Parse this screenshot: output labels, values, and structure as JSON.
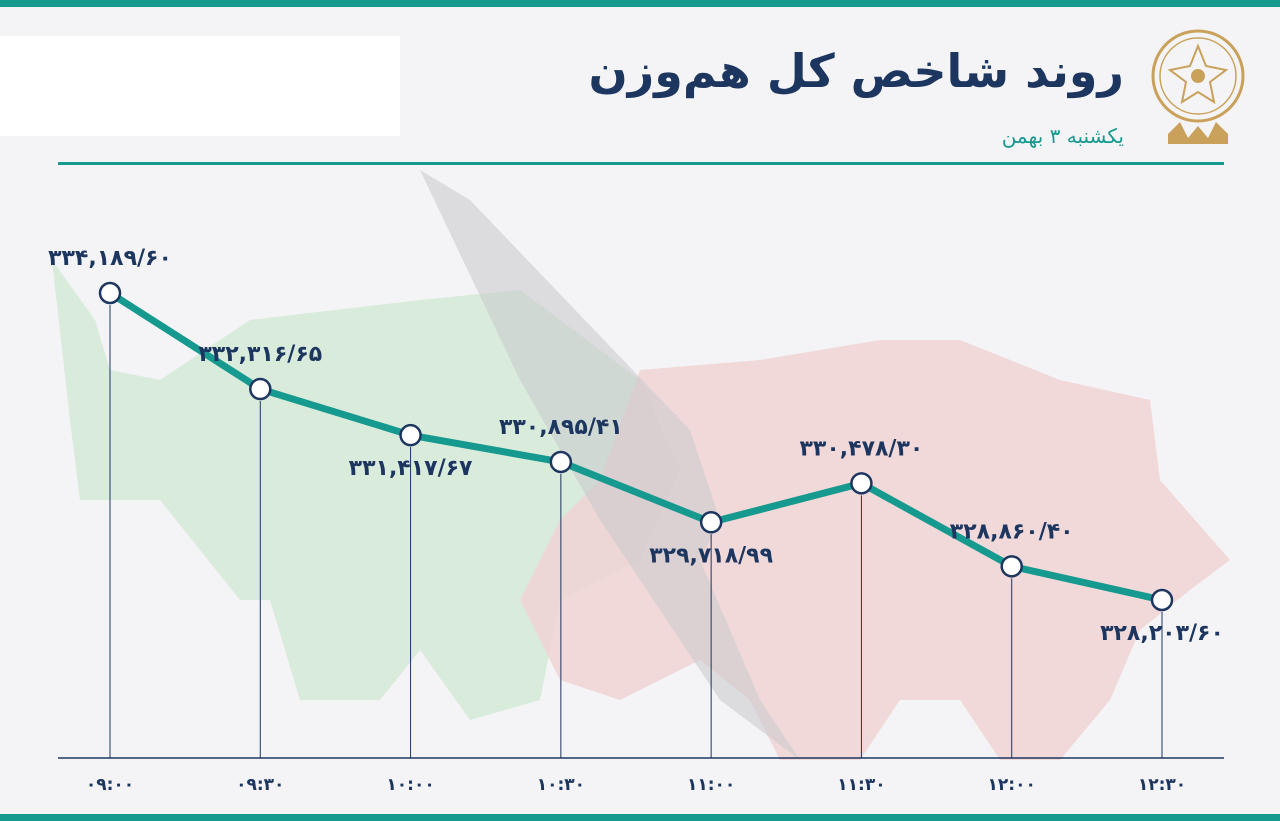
{
  "header": {
    "title": "روند شاخص کل هم‌وزن",
    "subtitle": "یکشنبه ۳ بهمن"
  },
  "colors": {
    "accent": "#16998f",
    "navy": "#1d3660",
    "bull": "#d3e9d6",
    "bear": "#f0d3d3"
  },
  "icons": [
    "exchange-logo-icon",
    "bull-silhouette-icon",
    "bear-silhouette-icon"
  ],
  "chart_data": {
    "type": "line",
    "title": "روند شاخص کل هم‌وزن",
    "xlabel": "",
    "ylabel": "",
    "categories": [
      "۰۹:۰۰",
      "۰۹:۳۰",
      "۱۰:۰۰",
      "۱۰:۳۰",
      "۱۱:۰۰",
      "۱۱:۳۰",
      "۱۲:۰۰",
      "۱۲:۳۰"
    ],
    "values": [
      334189.6,
      332316.65,
      331417.67,
      330895.41,
      329718.99,
      330478.3,
      328860.4,
      328203.6
    ],
    "value_labels": [
      "۳۳۴,۱۸۹/۶۰",
      "۳۳۲,۳۱۶/۶۵",
      "۳۳۱,۴۱۷/۶۷",
      "۳۳۰,۸۹۵/۴۱",
      "۳۲۹,۷۱۸/۹۹",
      "۳۳۰,۴۷۸/۳۰",
      "۳۲۸,۸۶۰/۴۰",
      "۳۲۸,۲۰۳/۶۰"
    ],
    "label_position": [
      "above",
      "above",
      "below",
      "above",
      "below",
      "above",
      "above",
      "below"
    ],
    "grid": false,
    "legend": "none"
  }
}
